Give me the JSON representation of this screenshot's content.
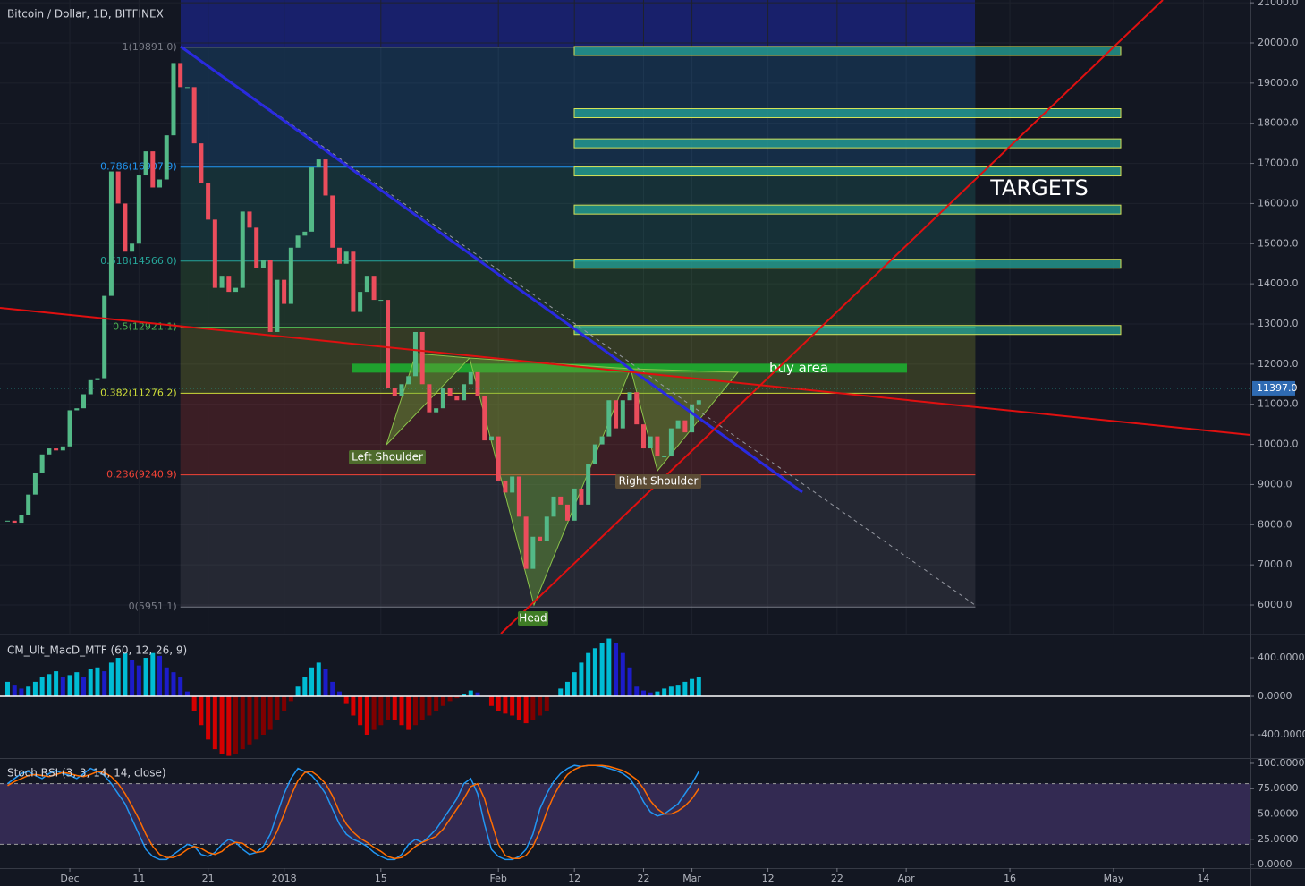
{
  "chart_data": [
    {
      "type": "candlestick",
      "title": "Bitcoin / Dollar, 1D, BITFINEX",
      "close": [
        8100,
        8050,
        8250,
        8750,
        9300,
        9750,
        9900,
        9850,
        9950,
        10850,
        10900,
        11250,
        11600,
        11650,
        13700,
        16800,
        16000,
        14800,
        15000,
        16700,
        17300,
        16400,
        16600,
        17700,
        19500,
        18900,
        18900,
        17500,
        16500,
        15600,
        13900,
        14200,
        13800,
        13900,
        15800,
        15400,
        14400,
        14600,
        12800,
        14100,
        13500,
        14900,
        15200,
        15300,
        16900,
        17100,
        16200,
        14900,
        14500,
        14800,
        13300,
        13800,
        14200,
        13600,
        13600,
        11400,
        11200,
        11500,
        11700,
        12800,
        11500,
        10800,
        10900,
        11400,
        11200,
        11100,
        11500,
        11800,
        11200,
        10100,
        10200,
        9100,
        8800,
        9200,
        8200,
        6900,
        7700,
        7600,
        8200,
        8700,
        8500,
        8100,
        8900,
        8500,
        9500,
        10000,
        10200,
        11100,
        10400,
        11100,
        11300,
        10500,
        9900,
        10200,
        9700,
        9700,
        10400,
        10600,
        10300,
        11000,
        11100
      ],
      "xlim": [
        -1.1,
        179.8
      ],
      "xticks": [
        {
          "value": 9,
          "label": "Dec"
        },
        {
          "value": 19,
          "label": "11"
        },
        {
          "value": 29,
          "label": "21"
        },
        {
          "value": 40,
          "label": "2018"
        },
        {
          "value": 54,
          "label": "15"
        },
        {
          "value": 71,
          "label": "Feb"
        },
        {
          "value": 82,
          "label": "12"
        },
        {
          "value": 92,
          "label": "22"
        },
        {
          "value": 99,
          "label": "Mar"
        },
        {
          "value": 110,
          "label": "12"
        },
        {
          "value": 120,
          "label": "22"
        },
        {
          "value": 130,
          "label": "Apr"
        },
        {
          "value": 145,
          "label": "16"
        },
        {
          "value": 160,
          "label": "May"
        },
        {
          "value": 173,
          "label": "14"
        }
      ],
      "ylim": [
        5287,
        21070
      ],
      "yticks": [
        {
          "value": 6000,
          "label": "6000.0"
        },
        {
          "value": 7000,
          "label": "7000.0"
        },
        {
          "value": 8000,
          "label": "8000.0"
        },
        {
          "value": 9000,
          "label": "9000.0"
        },
        {
          "value": 10000,
          "label": "10000.0"
        },
        {
          "value": 11000,
          "label": "11000.0"
        },
        {
          "value": 12000,
          "label": "12000.0"
        },
        {
          "value": 13000,
          "label": "13000.0"
        },
        {
          "value": 14000,
          "label": "14000.0"
        },
        {
          "value": 15000,
          "label": "15000.0"
        },
        {
          "value": 16000,
          "label": "16000.0"
        },
        {
          "value": 17000,
          "label": "17000.0"
        },
        {
          "value": 18000,
          "label": "18000.0"
        },
        {
          "value": 19000,
          "label": "19000.0"
        },
        {
          "value": 20000,
          "label": "20000.0"
        },
        {
          "value": 21000,
          "label": "21000.0"
        }
      ],
      "up_color": "#53b987",
      "down_color": "#eb4d5c",
      "last_price": {
        "value": 11397,
        "label": "11397.0"
      },
      "fib_levels": [
        {
          "value": 19891,
          "label": "1(19891.0)",
          "color": "#787b86"
        },
        {
          "value": 16907.9,
          "label": "0.786(16907.9)",
          "color": "#2196f3"
        },
        {
          "value": 14566,
          "label": "0.618(14566.0)",
          "color": "#26a69a"
        },
        {
          "value": 12921.1,
          "label": "0.5(12921.1)",
          "color": "#4caf50"
        },
        {
          "value": 11276.2,
          "label": "0.382(11276.2)",
          "color": "#cddc39"
        },
        {
          "value": 9240.9,
          "label": "0.236(9240.9)",
          "color": "#f44336"
        },
        {
          "value": 5951.1,
          "label": "0(5951.1)",
          "color": "#787b86"
        }
      ],
      "targets": {
        "label": "TARGETS",
        "color": "#26a69a",
        "values": [
          19800,
          18250,
          17500,
          16800,
          15850,
          14500,
          12850
        ]
      },
      "buy_area": {
        "label": "buy area",
        "color": "#1fa12e",
        "value": 11900
      },
      "annotations": [
        "Left Shoulder",
        "Head",
        "Right Shoulder"
      ]
    },
    {
      "type": "bar",
      "title": "CM_Ult_MacD_MTF (60, 12, 26, 9)",
      "values": [
        150,
        120,
        80,
        100,
        150,
        200,
        230,
        260,
        200,
        220,
        250,
        200,
        280,
        300,
        260,
        350,
        400,
        450,
        380,
        320,
        400,
        450,
        420,
        300,
        250,
        200,
        50,
        -150,
        -300,
        -450,
        -550,
        -600,
        -620,
        -600,
        -550,
        -500,
        -450,
        -400,
        -350,
        -250,
        -150,
        -50,
        100,
        200,
        300,
        350,
        280,
        150,
        50,
        -80,
        -200,
        -300,
        -400,
        -350,
        -300,
        -250,
        -250,
        -300,
        -350,
        -300,
        -250,
        -200,
        -150,
        -100,
        -50,
        -20,
        20,
        60,
        40,
        0,
        -100,
        -150,
        -180,
        -200,
        -250,
        -280,
        -250,
        -200,
        -150,
        0,
        80,
        150,
        250,
        350,
        450,
        500,
        550,
        600,
        550,
        450,
        300,
        100,
        60,
        40,
        50,
        80,
        100,
        120,
        150,
        180,
        200
      ],
      "ylim": [
        -642,
        633
      ],
      "yticks": [
        {
          "value": 400,
          "label": "400.0000"
        },
        {
          "value": 0,
          "label": "0.0000"
        },
        {
          "value": -400,
          "label": "-400.0000"
        }
      ]
    },
    {
      "type": "line",
      "title": "Stoch RSI (3, 3, 14, 14, close)",
      "series": [
        {
          "color": "#2196f3",
          "values": [
            80,
            85,
            90,
            92,
            88,
            85,
            90,
            93,
            90,
            88,
            85,
            90,
            95,
            92,
            88,
            80,
            70,
            60,
            45,
            30,
            15,
            8,
            5,
            5,
            10,
            15,
            20,
            18,
            10,
            8,
            12,
            20,
            25,
            22,
            15,
            10,
            12,
            18,
            30,
            50,
            70,
            85,
            95,
            92,
            88,
            80,
            70,
            55,
            40,
            30,
            25,
            22,
            18,
            12,
            8,
            5,
            5,
            10,
            20,
            25,
            22,
            28,
            35,
            45,
            55,
            65,
            80,
            85,
            70,
            40,
            15,
            8,
            5,
            5,
            8,
            15,
            30,
            55,
            70,
            82,
            90,
            95,
            98,
            97,
            98,
            98,
            97,
            95,
            93,
            90,
            85,
            75,
            62,
            52,
            48,
            50,
            55,
            60,
            70,
            80,
            92
          ]
        },
        {
          "color": "#ff6d00",
          "values": [
            78,
            82,
            85,
            88,
            89,
            88,
            87,
            89,
            91,
            90,
            88,
            87,
            89,
            92,
            91,
            87,
            80,
            70,
            58,
            45,
            30,
            18,
            10,
            7,
            7,
            10,
            15,
            18,
            16,
            12,
            10,
            13,
            19,
            22,
            21,
            16,
            12,
            13,
            20,
            33,
            50,
            68,
            83,
            91,
            92,
            87,
            80,
            68,
            52,
            40,
            32,
            26,
            22,
            17,
            13,
            8,
            6,
            7,
            12,
            18,
            22,
            25,
            28,
            35,
            45,
            55,
            65,
            77,
            80,
            65,
            42,
            20,
            9,
            6,
            6,
            9,
            18,
            33,
            52,
            68,
            80,
            89,
            94,
            97,
            98,
            98,
            98,
            97,
            95,
            93,
            89,
            84,
            75,
            63,
            55,
            50,
            50,
            53,
            58,
            65,
            75
          ]
        }
      ],
      "band": [
        20,
        80
      ],
      "ylim": [
        -3.5,
        104.4
      ],
      "yticks": [
        {
          "value": 100,
          "label": "100.0000"
        },
        {
          "value": 75,
          "label": "75.0000"
        },
        {
          "value": 50,
          "label": "50.0000"
        },
        {
          "value": 25,
          "label": "25.0000"
        },
        {
          "value": 0,
          "label": "0.0000"
        }
      ]
    }
  ]
}
